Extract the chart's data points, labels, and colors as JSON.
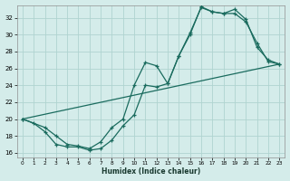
{
  "xlabel": "Humidex (Indice chaleur)",
  "bg_color": "#d4ecea",
  "grid_color": "#b0d4d0",
  "line_color": "#1a6b5e",
  "xlim": [
    -0.5,
    23.5
  ],
  "ylim": [
    15.5,
    33.5
  ],
  "xticks": [
    0,
    1,
    2,
    3,
    4,
    5,
    6,
    7,
    8,
    9,
    10,
    11,
    12,
    13,
    14,
    15,
    16,
    17,
    18,
    19,
    20,
    21,
    22,
    23
  ],
  "yticks": [
    16,
    18,
    20,
    22,
    24,
    26,
    28,
    30,
    32
  ],
  "line1_x": [
    0,
    1,
    2,
    3,
    4,
    5,
    6,
    7,
    8,
    9,
    10,
    11,
    12,
    13,
    14,
    15,
    16,
    17,
    18,
    19,
    20,
    21,
    22,
    23
  ],
  "line1_y": [
    20,
    19.5,
    18.5,
    17.0,
    16.7,
    16.7,
    16.3,
    16.5,
    17.5,
    19.2,
    20.5,
    24.0,
    23.8,
    24.2,
    27.5,
    30.2,
    33.2,
    32.7,
    32.5,
    33.0,
    31.8,
    28.5,
    27.0,
    26.5
  ],
  "line2_x": [
    0,
    2,
    3,
    4,
    5,
    6,
    7,
    8,
    9,
    10,
    11,
    12,
    13,
    14,
    15,
    16,
    17,
    18,
    19,
    20,
    21,
    22,
    23
  ],
  "line2_y": [
    20,
    19.0,
    18.0,
    17.0,
    16.8,
    16.5,
    17.3,
    19.0,
    20.0,
    24.0,
    26.7,
    26.3,
    24.2,
    27.5,
    30.0,
    33.3,
    32.7,
    32.5,
    32.5,
    31.5,
    29.0,
    26.8,
    26.5
  ],
  "line3_x": [
    0,
    23
  ],
  "line3_y": [
    20,
    26.5
  ]
}
